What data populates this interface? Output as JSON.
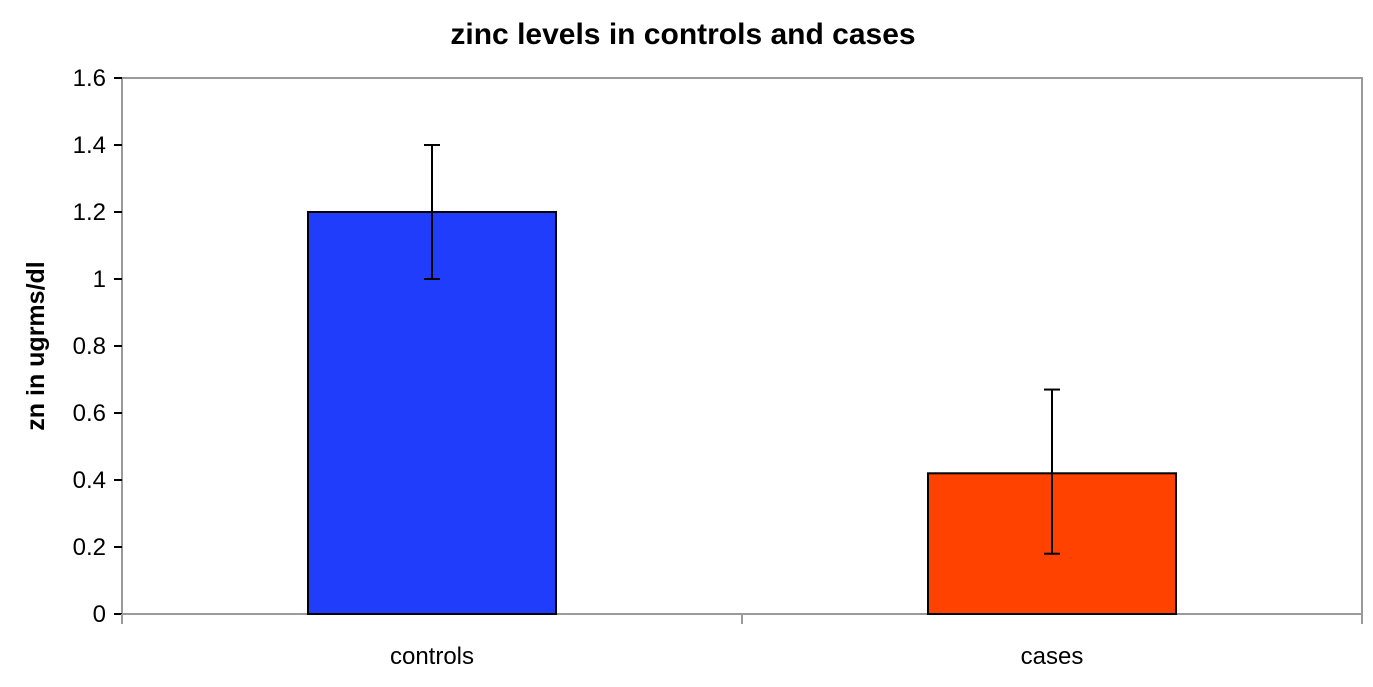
{
  "chart_data": {
    "type": "bar",
    "title": "zinc levels in controls and cases",
    "xlabel": "",
    "ylabel": "zn in ugrms/dl",
    "ylim": [
      0,
      1.6
    ],
    "yticks": [
      "0",
      "0.2",
      "0.4",
      "0.6",
      "0.8",
      "1",
      "1.2",
      "1.4",
      "1.6"
    ],
    "categories": [
      "controls",
      "cases"
    ],
    "values": [
      1.2,
      0.42
    ],
    "error_bars": [
      {
        "low": 1.0,
        "high": 1.4
      },
      {
        "low": 0.18,
        "high": 0.67
      }
    ],
    "bar_colors": [
      "#1f3dfb",
      "#ff4200"
    ],
    "plot_border_color": "#9a9a9a",
    "grid": false,
    "legend": "none"
  }
}
